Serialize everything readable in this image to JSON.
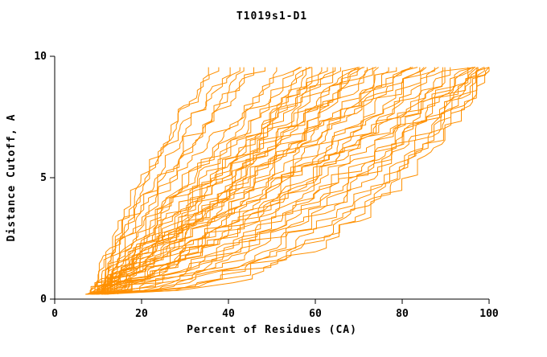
{
  "page": {
    "background": "#ffffff"
  },
  "chart_data": {
    "type": "line",
    "title": "T1019s1-D1",
    "xlabel": "Percent of Residues (CA)",
    "ylabel": "Distance Cutoff, A",
    "xlim": [
      0,
      100
    ],
    "ylim": [
      0,
      10
    ],
    "xticks": [
      0,
      20,
      40,
      60,
      80,
      100
    ],
    "yticks": [
      0,
      5,
      10
    ],
    "grid": false,
    "legend": "none",
    "line_color": "#ff9000",
    "axis_color": "#000000",
    "y_start": 0.2,
    "y_end": 9.55,
    "points_per_curve": 60,
    "seed": 12345,
    "curves": [
      {
        "x0": 9,
        "x1": 36,
        "q": 1.3
      },
      {
        "x0": 10,
        "x1": 38,
        "q": 1.5
      },
      {
        "x0": 9,
        "x1": 40,
        "q": 1.2
      },
      {
        "x0": 11,
        "x1": 42,
        "q": 1.6
      },
      {
        "x0": 10,
        "x1": 44,
        "q": 1.1
      },
      {
        "x0": 12,
        "x1": 46,
        "q": 1.4
      },
      {
        "x0": 8,
        "x1": 48,
        "q": 1.3
      },
      {
        "x0": 9,
        "x1": 52,
        "q": 1.0
      },
      {
        "x0": 10,
        "x1": 55,
        "q": 0.9
      },
      {
        "x0": 11,
        "x1": 55,
        "q": 1.5
      },
      {
        "x0": 9,
        "x1": 58,
        "q": 0.8
      },
      {
        "x0": 10,
        "x1": 58,
        "q": 1.2
      },
      {
        "x0": 12,
        "x1": 60,
        "q": 1.0
      },
      {
        "x0": 8,
        "x1": 60,
        "q": 0.7
      },
      {
        "x0": 10,
        "x1": 62,
        "q": 1.3
      },
      {
        "x0": 11,
        "x1": 62,
        "q": 0.9
      },
      {
        "x0": 9,
        "x1": 64,
        "q": 1.1
      },
      {
        "x0": 10,
        "x1": 65,
        "q": 0.8
      },
      {
        "x0": 12,
        "x1": 66,
        "q": 1.4
      },
      {
        "x0": 9,
        "x1": 68,
        "q": 1.0
      },
      {
        "x0": 10,
        "x1": 68,
        "q": 0.7
      },
      {
        "x0": 11,
        "x1": 70,
        "q": 1.2
      },
      {
        "x0": 9,
        "x1": 70,
        "q": 0.9
      },
      {
        "x0": 10,
        "x1": 72,
        "q": 0.8
      },
      {
        "x0": 12,
        "x1": 72,
        "q": 1.1
      },
      {
        "x0": 9,
        "x1": 74,
        "q": 0.9
      },
      {
        "x0": 10,
        "x1": 75,
        "q": 1.3
      },
      {
        "x0": 11,
        "x1": 76,
        "q": 0.7
      },
      {
        "x0": 9,
        "x1": 78,
        "q": 1.0
      },
      {
        "x0": 10,
        "x1": 78,
        "q": 0.85
      },
      {
        "x0": 12,
        "x1": 80,
        "q": 1.1
      },
      {
        "x0": 9,
        "x1": 80,
        "q": 0.65
      },
      {
        "x0": 10,
        "x1": 82,
        "q": 0.95
      },
      {
        "x0": 11,
        "x1": 84,
        "q": 0.75
      },
      {
        "x0": 9,
        "x1": 85,
        "q": 1.1
      },
      {
        "x0": 10,
        "x1": 86,
        "q": 0.6
      },
      {
        "x0": 12,
        "x1": 88,
        "q": 0.9
      },
      {
        "x0": 9,
        "x1": 88,
        "q": 0.7
      },
      {
        "x0": 10,
        "x1": 90,
        "q": 1.0
      },
      {
        "x0": 11,
        "x1": 92,
        "q": 0.8
      },
      {
        "x0": 9,
        "x1": 92,
        "q": 0.6
      },
      {
        "x0": 10,
        "x1": 94,
        "q": 0.9
      },
      {
        "x0": 12,
        "x1": 94,
        "q": 0.55
      },
      {
        "x0": 9,
        "x1": 95,
        "q": 0.75
      },
      {
        "x0": 10,
        "x1": 96,
        "q": 0.5
      },
      {
        "x0": 11,
        "x1": 96,
        "q": 0.85
      },
      {
        "x0": 9,
        "x1": 97,
        "q": 0.6
      },
      {
        "x0": 10,
        "x1": 98,
        "q": 0.45
      },
      {
        "x0": 12,
        "x1": 98,
        "q": 0.7
      },
      {
        "x0": 9,
        "x1": 99,
        "q": 0.55
      },
      {
        "x0": 10,
        "x1": 100,
        "q": 0.5
      },
      {
        "x0": 11,
        "x1": 100,
        "q": 0.65
      },
      {
        "x0": 8,
        "x1": 100,
        "q": 0.4
      },
      {
        "x0": 7,
        "x1": 99,
        "q": 0.35
      },
      {
        "x0": 10,
        "x1": 97,
        "q": 0.4
      }
    ]
  }
}
